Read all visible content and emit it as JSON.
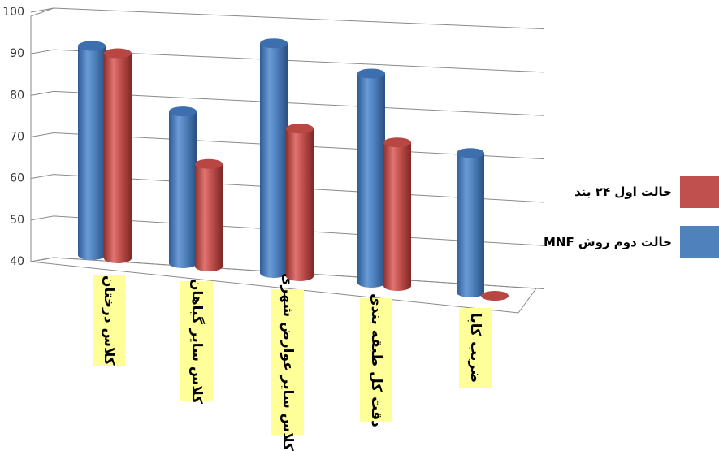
{
  "chart_data": {
    "type": "bar",
    "style": "3d-cylinder",
    "categories": [
      "کلاس درختان",
      "کلاس سایر گیاهان",
      "کلاس سایر عوارض شهری",
      "دقت کل طبقه بندی",
      "ضریب کاپا"
    ],
    "series": [
      {
        "name": "حالت دوم روش MNF",
        "color": "#4f81bd",
        "values": [
          91,
          77,
          96,
          91,
          74
        ]
      },
      {
        "name": "حالت اول ۲۴ بند",
        "color": "#c0504d",
        "values": [
          90,
          65,
          76,
          75,
          40
        ]
      }
    ],
    "y_ticks": [
      "40",
      "50",
      "60",
      "70",
      "80",
      "90",
      "100"
    ],
    "ylim": [
      40,
      100
    ],
    "grid": true,
    "legend_position": "right",
    "category_label_background": "#ffff99"
  }
}
